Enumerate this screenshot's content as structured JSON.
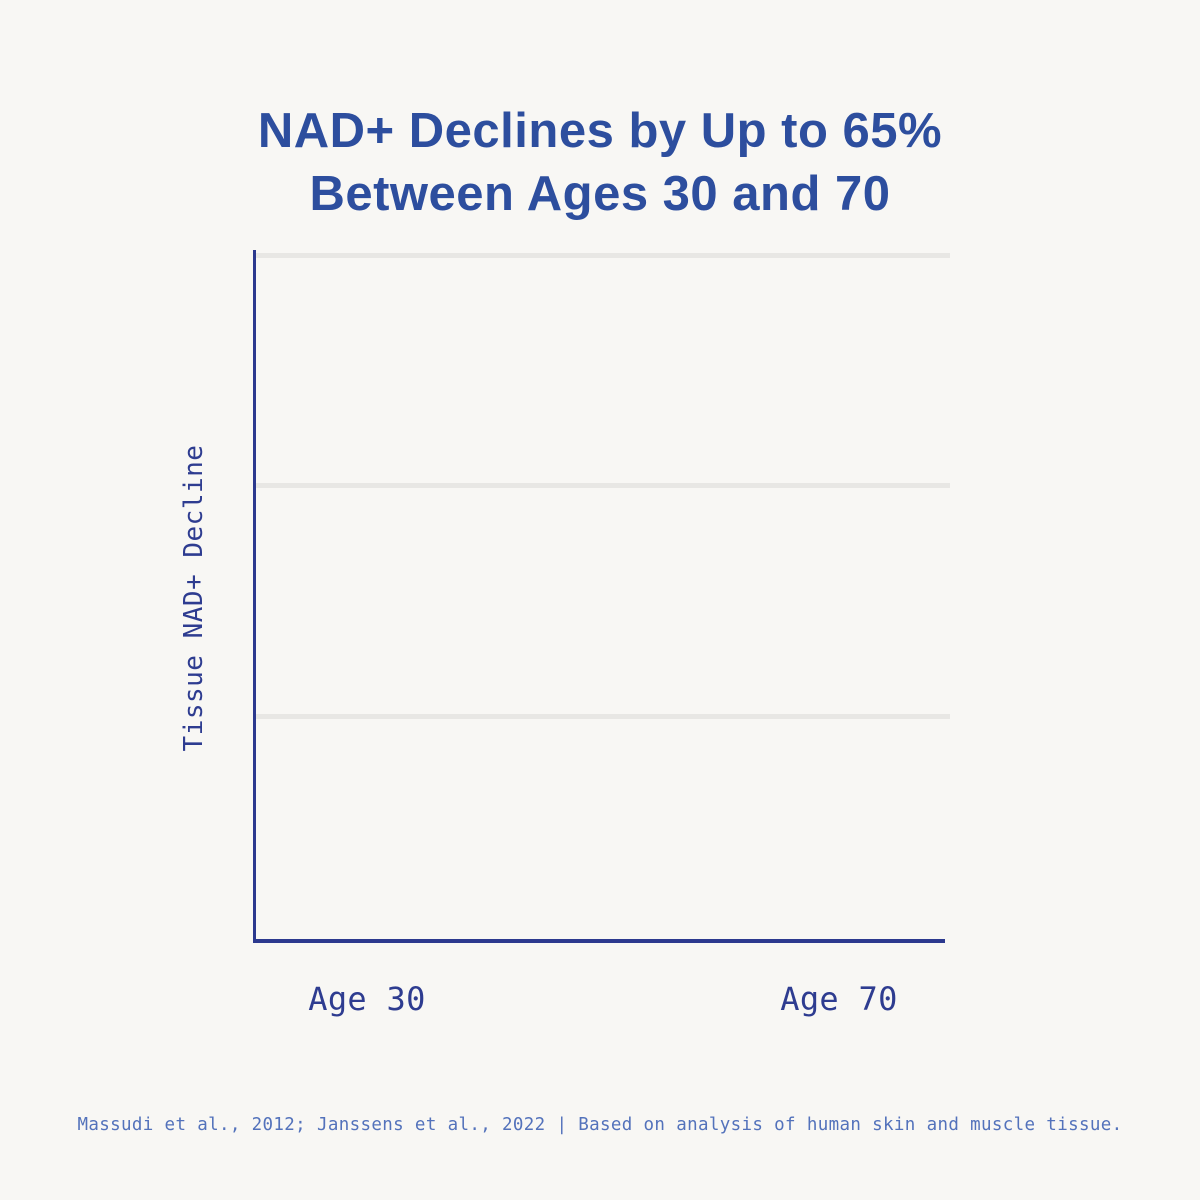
{
  "header": {
    "title_line1": "NAD+ Declines by Up to 65%",
    "title_line2": "Between Ages 30 and 70"
  },
  "chart": {
    "y_axis_label": "Tissue NAD+ Decline",
    "x_tick_labels": [
      "Age 30",
      "Age 70"
    ]
  },
  "footer": {
    "citation": "Massudi et al., 2012; Janssens et al., 2022 | Based on analysis of human skin and muscle tissue."
  },
  "colors": {
    "background": "#f8f7f4",
    "title_blue": "#2d4e9e",
    "axis_navy": "#2c398e",
    "tick_label_navy": "#2e3c90",
    "footer_blue": "#5372bb",
    "gridline_gray": "#e8e7e4"
  },
  "chart_data": {
    "type": "bar",
    "title": "NAD+ Declines by Up to 65% Between Ages 30 and 70",
    "categories": [
      "Age 30",
      "Age 70"
    ],
    "series": [],
    "values": [],
    "bars_rendered": false,
    "plot_area_empty": true,
    "xlabel": "",
    "ylabel": "Tissue NAD+ Decline",
    "y_tick_labels": [],
    "gridlines": {
      "horizontal_count": 3,
      "vertical_count": 0,
      "color": "#e8e7e4"
    },
    "axes_color": "#2c398e",
    "legend_position": "none",
    "source_note": "Massudi et al., 2012; Janssens et al., 2022 | Based on analysis of human skin and muscle tissue."
  }
}
